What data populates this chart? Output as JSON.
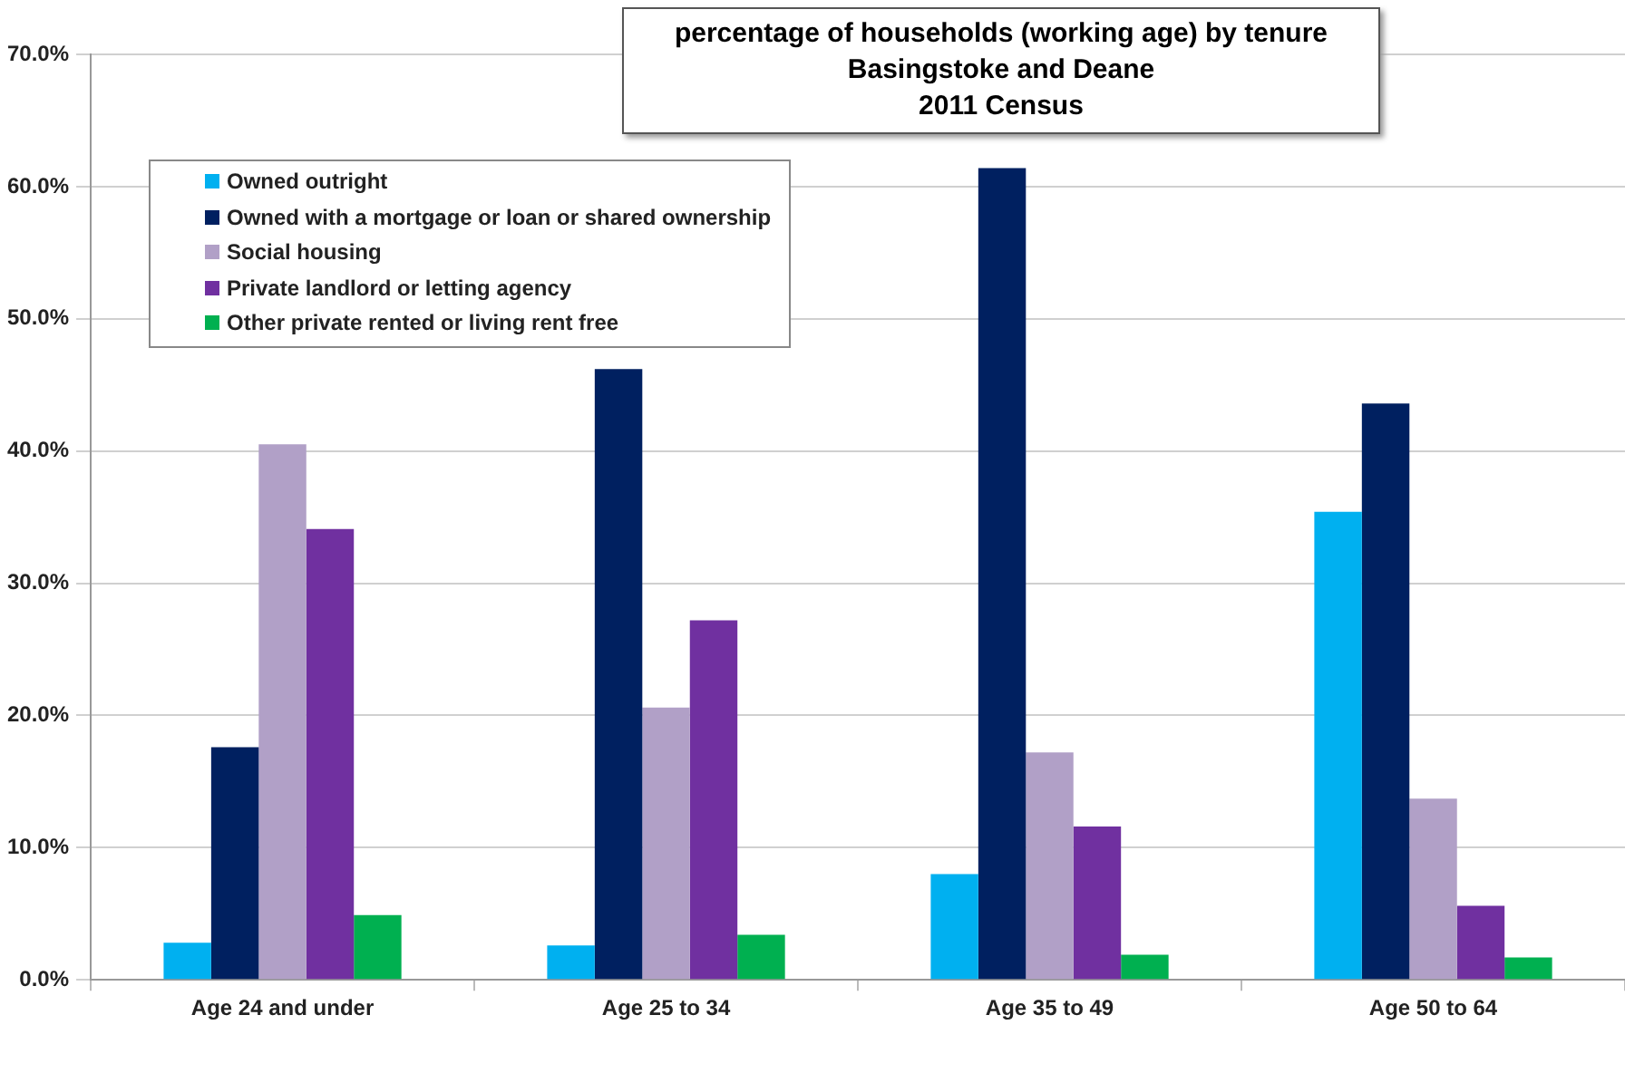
{
  "chart_data": {
    "type": "bar",
    "title": "percentage of households (working age) by tenure\nBasingstoke and Deane\n2011 Census",
    "categories": [
      "Age 24 and under",
      "Age 25 to 34",
      "Age 35 to 49",
      "Age 50 to 64"
    ],
    "series": [
      {
        "name": "Owned outright",
        "color": "#00b0f0",
        "values": [
          2.8,
          2.6,
          8.0,
          35.4
        ]
      },
      {
        "name": "Owned with a mortgage or loan or shared ownership",
        "color": "#002060",
        "values": [
          17.6,
          46.2,
          61.4,
          43.6
        ]
      },
      {
        "name": "Social housing",
        "color": "#b1a0c7",
        "values": [
          40.5,
          20.6,
          17.2,
          13.7
        ]
      },
      {
        "name": "Private landlord or letting agency",
        "color": "#7030a0",
        "values": [
          34.1,
          27.2,
          11.6,
          5.6
        ]
      },
      {
        "name": "Other private rented or living rent free",
        "color": "#00b050",
        "values": [
          4.9,
          3.4,
          1.9,
          1.7
        ]
      }
    ],
    "ylim": [
      0,
      70
    ],
    "yticks": [
      {
        "value": 0,
        "label": "0.0%"
      },
      {
        "value": 10,
        "label": "10.0%"
      },
      {
        "value": 20,
        "label": "20.0%"
      },
      {
        "value": 30,
        "label": "30.0%"
      },
      {
        "value": 40,
        "label": "40.0%"
      },
      {
        "value": 50,
        "label": "50.0%"
      },
      {
        "value": 60,
        "label": "60.0%"
      },
      {
        "value": 70,
        "label": "70.0%"
      }
    ],
    "grid": "y",
    "legend": "top left"
  }
}
